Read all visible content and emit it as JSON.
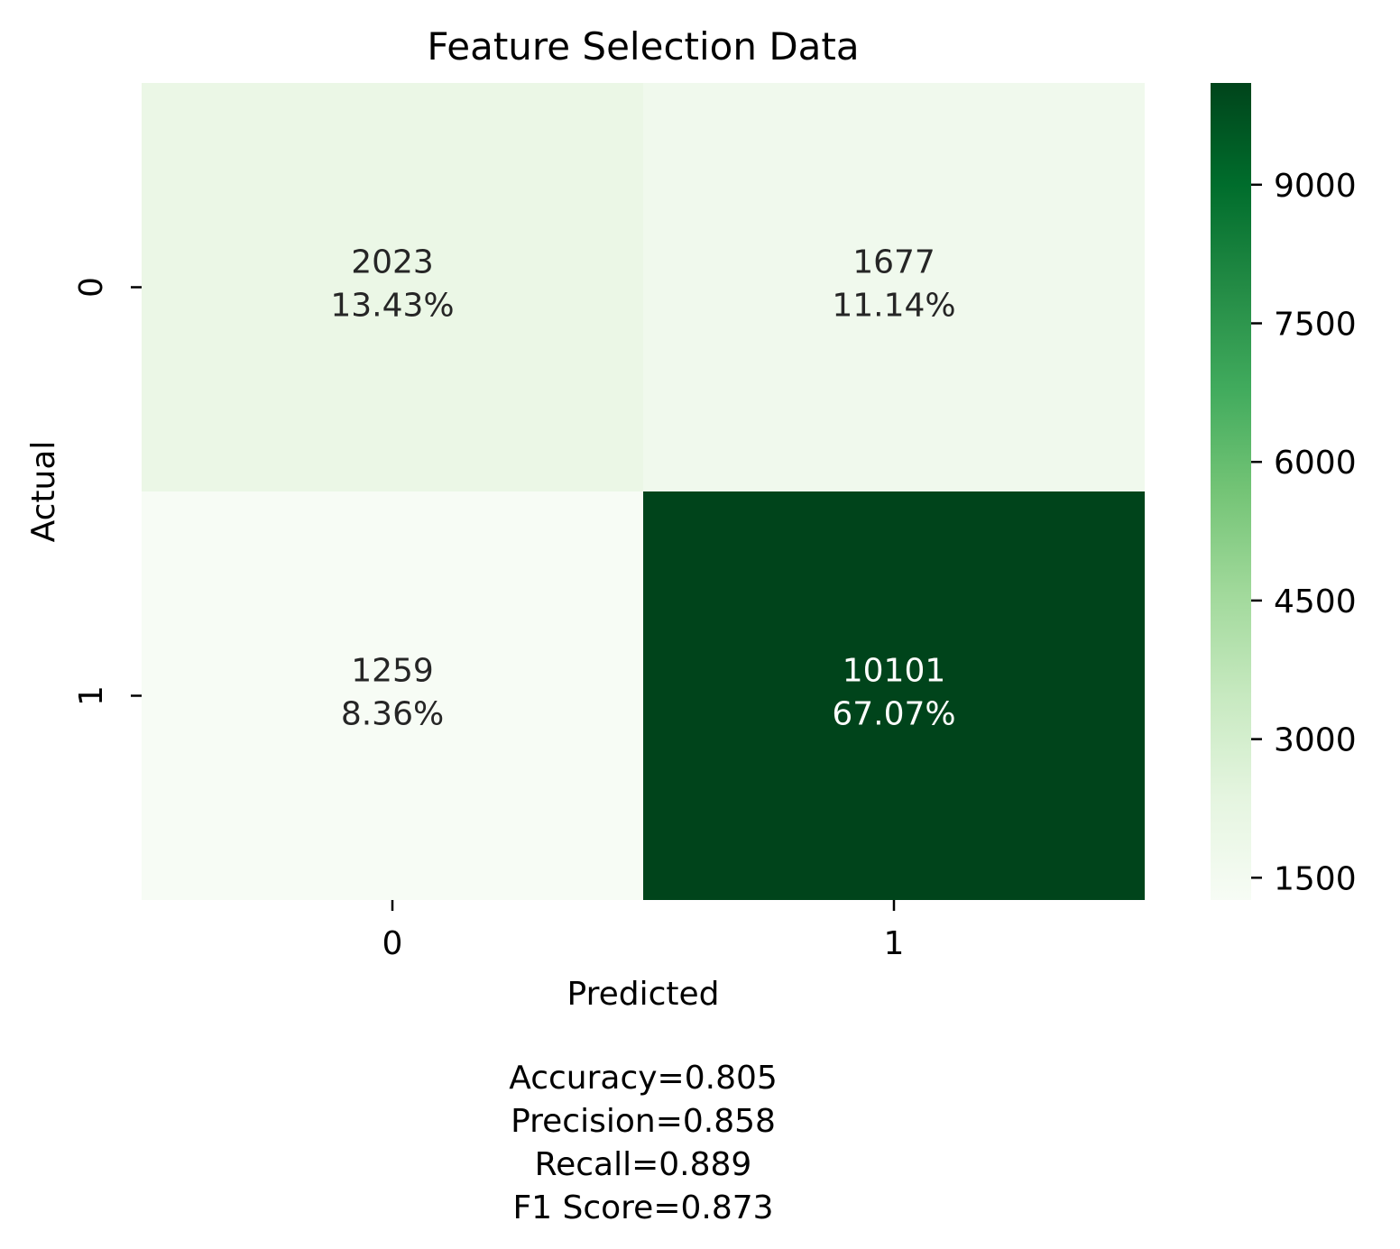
{
  "chart_data": {
    "type": "heatmap",
    "title": "Feature Selection Data",
    "xlabel": "Predicted",
    "ylabel": "Actual",
    "x_categories": [
      "0",
      "1"
    ],
    "y_categories": [
      "0",
      "1"
    ],
    "cells": [
      {
        "row": 0,
        "col": 0,
        "count": "2023",
        "percent": "13.43%",
        "value": 2023
      },
      {
        "row": 0,
        "col": 1,
        "count": "1677",
        "percent": "11.14%",
        "value": 1677
      },
      {
        "row": 1,
        "col": 0,
        "count": "1259",
        "percent": "8.36%",
        "value": 1259
      },
      {
        "row": 1,
        "col": 1,
        "count": "10101",
        "percent": "67.07%",
        "value": 10101
      }
    ],
    "colorbar": {
      "colormap": "Greens",
      "range": [
        1259,
        10101
      ],
      "ticks": [
        "1500",
        "3000",
        "4500",
        "6000",
        "7500",
        "9000"
      ],
      "tick_values": [
        1500,
        3000,
        4500,
        6000,
        7500,
        9000
      ]
    },
    "metrics": {
      "accuracy": "Accuracy=0.805",
      "precision": "Precision=0.858",
      "recall": "Recall=0.889",
      "f1": "F1 Score=0.873"
    }
  }
}
